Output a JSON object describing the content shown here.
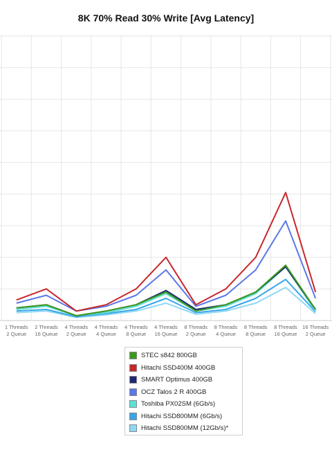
{
  "chart_data": {
    "type": "line",
    "title": "8K 70% Read 30% Write [Avg Latency]",
    "xlabel": "",
    "ylabel": "",
    "grid": true,
    "legend_position": "bottom",
    "categories": [
      [
        "1 Threads",
        "2 Queue"
      ],
      [
        "2 Threads",
        "16 Queue"
      ],
      [
        "4 Threads",
        "2 Queue"
      ],
      [
        "4 Threads",
        "4 Queue"
      ],
      [
        "4 Threads",
        "8 Queue"
      ],
      [
        "4 Threads",
        "16 Queue"
      ],
      [
        "8 Threads",
        "2 Queue"
      ],
      [
        "8 Threads",
        "4 Queue"
      ],
      [
        "8 Threads",
        "8 Queue"
      ],
      [
        "8 Threads",
        "16 Queue"
      ],
      [
        "16 Threads",
        "2 Queue"
      ]
    ],
    "x_first": -0.55,
    "x_last": 10.55,
    "ylim": [
      0,
      9
    ],
    "series": [
      {
        "name": "STEC s842 800GB",
        "color": "#3c9a1e",
        "values": [
          0.4,
          0.5,
          0.15,
          0.3,
          0.5,
          0.9,
          0.3,
          0.5,
          0.9,
          1.75,
          0.35
        ]
      },
      {
        "name": "Hitachi SSD400M 400GB",
        "color": "#c8262b",
        "values": [
          0.65,
          1.0,
          0.3,
          0.5,
          1.0,
          2.0,
          0.5,
          1.0,
          2.0,
          4.05,
          0.9
        ]
      },
      {
        "name": "SMART Optimus 400GB",
        "color": "#1d2a73",
        "values": [
          0.4,
          0.5,
          0.15,
          0.3,
          0.5,
          0.95,
          0.35,
          0.5,
          0.9,
          1.7,
          0.35
        ]
      },
      {
        "name": "OCZ Talos 2 R 400GB",
        "color": "#5a78e6",
        "values": [
          0.55,
          0.8,
          0.3,
          0.45,
          0.8,
          1.6,
          0.45,
          0.8,
          1.6,
          3.15,
          0.7
        ]
      },
      {
        "name": "Toshiba PX02SM (6Gb/s)",
        "color": "#5fe0d6",
        "values": [
          0.35,
          0.45,
          0.15,
          0.25,
          0.45,
          0.85,
          0.3,
          0.45,
          0.85,
          1.7,
          0.3
        ]
      },
      {
        "name": "Hitachi SSD800MM (6Gb/s)",
        "color": "#3aa6e8",
        "values": [
          0.3,
          0.35,
          0.12,
          0.22,
          0.35,
          0.7,
          0.25,
          0.35,
          0.7,
          1.3,
          0.28
        ]
      },
      {
        "name": "Hitachi SSD800MM (12Gb/s)*",
        "color": "#8ed9f5",
        "values": [
          0.25,
          0.3,
          0.1,
          0.18,
          0.3,
          0.55,
          0.2,
          0.3,
          0.55,
          1.05,
          0.22
        ]
      }
    ]
  }
}
